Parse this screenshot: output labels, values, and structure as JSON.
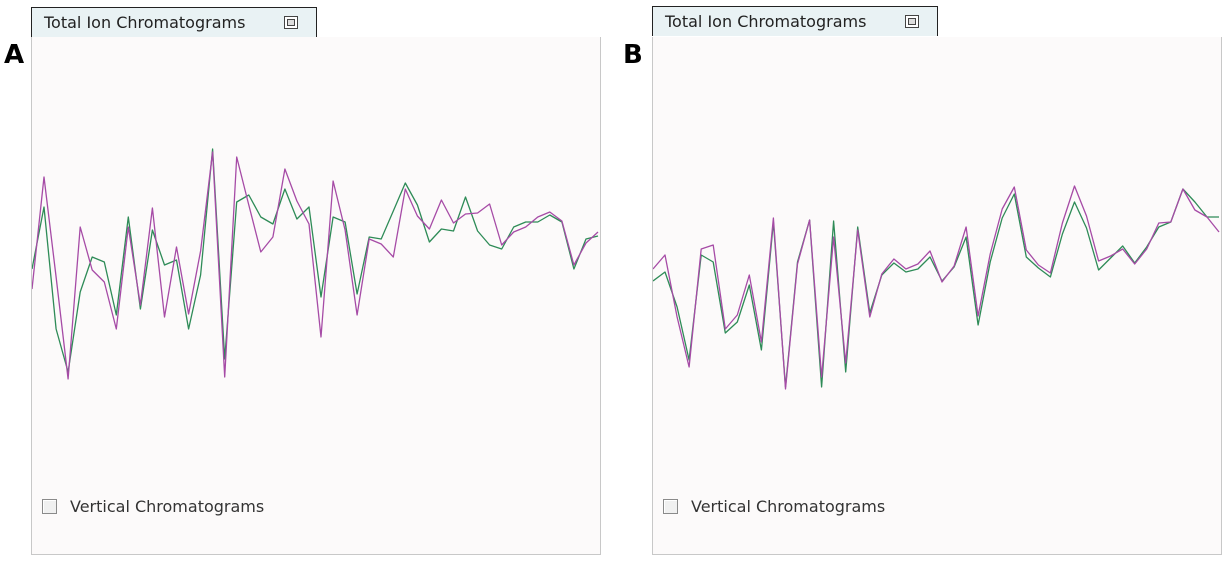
{
  "panels": [
    {
      "label": "A",
      "tab_title": "Total Ion Chromatograms",
      "checkbox_label": "Vertical Chromatograms",
      "checkbox_checked": false,
      "series": [
        {
          "color": "#2e8b57",
          "y": [
            148,
            210,
            88,
            45,
            125,
            160,
            155,
            102,
            200,
            108,
            187,
            152,
            157,
            88,
            142,
            268,
            58,
            215,
            222,
            200,
            193,
            228,
            198,
            210,
            120,
            200,
            195,
            123,
            180,
            178,
            206,
            234,
            212,
            175,
            188,
            186,
            220,
            186,
            172,
            168,
            190,
            195,
            195,
            202,
            195,
            148,
            178,
            181
          ]
        },
        {
          "color": "#a64ba6",
          "y": [
            128,
            240,
            140,
            38,
            190,
            147,
            135,
            88,
            190,
            112,
            209,
            100,
            170,
            103,
            166,
            265,
            40,
            260,
            212,
            165,
            180,
            248,
            216,
            193,
            80,
            236,
            187,
            102,
            178,
            173,
            160,
            228,
            201,
            188,
            217,
            194,
            203,
            204,
            213,
            172,
            185,
            190,
            200,
            205,
            196,
            152,
            174,
            185
          ]
        }
      ]
    },
    {
      "label": "B",
      "tab_title": "Total Ion Chromatograms",
      "checkbox_label": "Vertical Chromatograms",
      "checkbox_checked": false,
      "series": [
        {
          "color": "#2e8b57",
          "y": [
            136,
            145,
            110,
            57,
            162,
            155,
            84,
            95,
            132,
            67,
            195,
            30,
            155,
            197,
            30,
            196,
            45,
            190,
            104,
            142,
            154,
            145,
            148,
            160,
            136,
            150,
            180,
            92,
            155,
            199,
            223,
            160,
            149,
            140,
            183,
            215,
            189,
            147,
            159,
            171,
            154,
            170,
            190,
            195,
            228,
            215,
            200,
            200
          ]
        },
        {
          "color": "#a64ba6",
          "y": [
            148,
            162,
            100,
            50,
            168,
            172,
            88,
            102,
            142,
            75,
            199,
            28,
            153,
            197,
            40,
            180,
            54,
            187,
            100,
            143,
            158,
            148,
            153,
            166,
            135,
            151,
            190,
            101,
            163,
            208,
            230,
            167,
            152,
            144,
            194,
            231,
            201,
            156,
            161,
            168,
            153,
            168,
            194,
            195,
            228,
            207,
            200,
            185
          ]
        }
      ]
    }
  ]
}
